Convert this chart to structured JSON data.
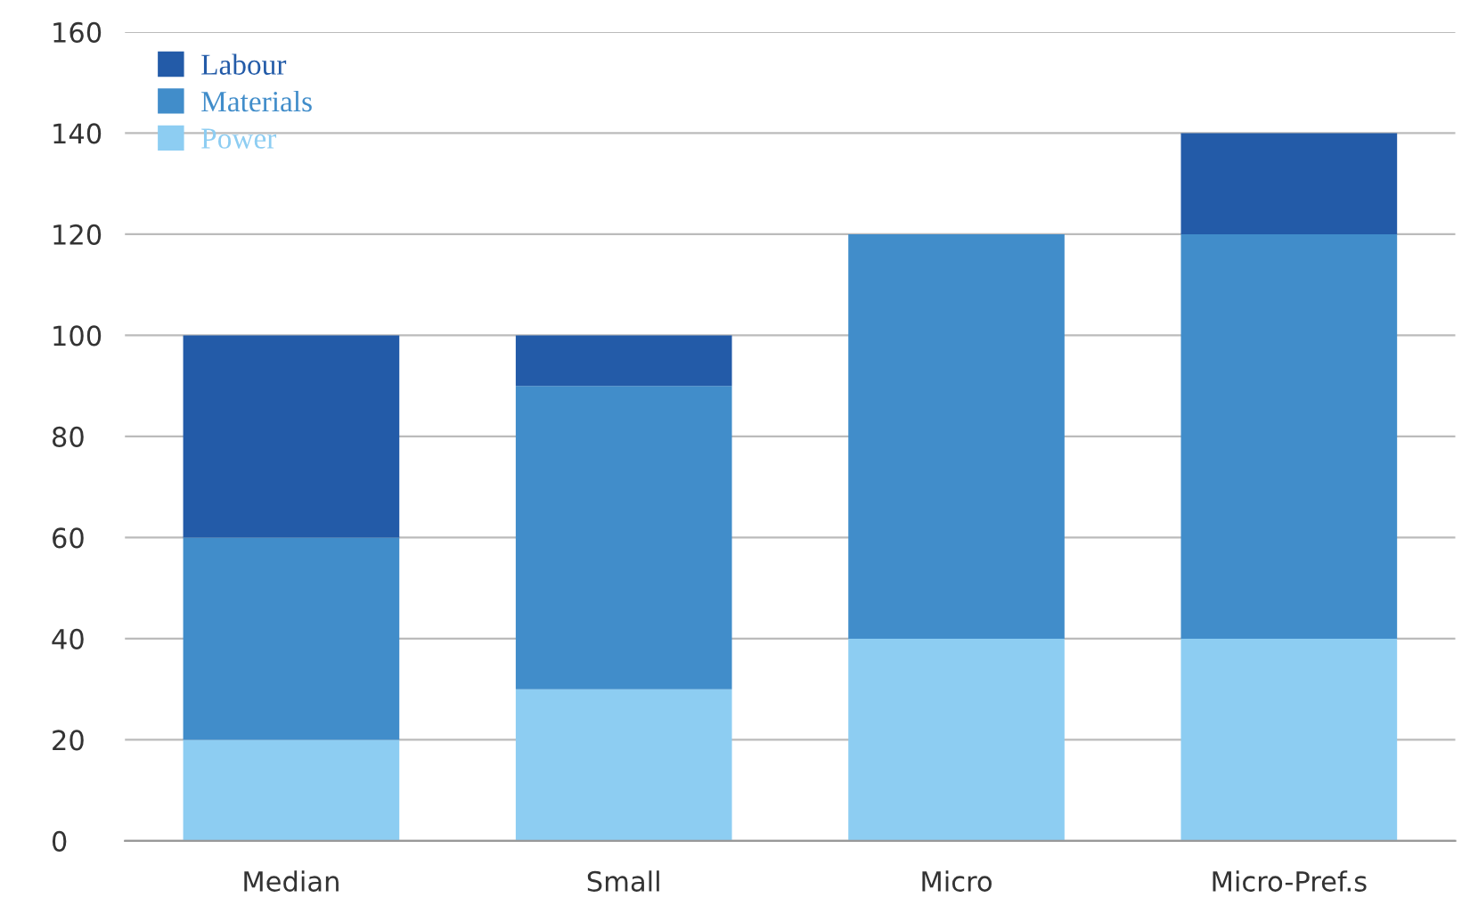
{
  "chart_data": {
    "type": "bar",
    "stacked": true,
    "categories": [
      "Median",
      "Small",
      "Micro",
      "Micro-Pref.s"
    ],
    "series": [
      {
        "name": "Power",
        "color": "#8dcdf2",
        "values": [
          20,
          30,
          40,
          40
        ]
      },
      {
        "name": "Materials",
        "color": "#418dca",
        "values": [
          40,
          60,
          80,
          80
        ]
      },
      {
        "name": "Labour",
        "color": "#235ba8",
        "values": [
          40,
          10,
          0,
          20
        ]
      }
    ],
    "ylim": [
      0,
      160
    ],
    "yticks": [
      0,
      20,
      40,
      60,
      80,
      100,
      120,
      140,
      160
    ],
    "grid": "y",
    "legend": "top left"
  }
}
